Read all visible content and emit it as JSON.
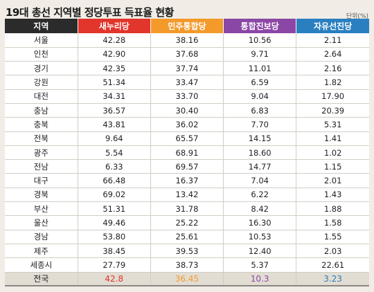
{
  "title": "19대 총선 지역별 정당투표 득표율 현황",
  "unit": "단위(%)",
  "colors": {
    "region_header": "#2b2b2b",
    "saenuri": "#e2352b",
    "minju": "#f39a2a",
    "tonghap": "#8b47a6",
    "jayu": "#2a7fc1"
  },
  "table": {
    "headers": [
      "지역",
      "새누리당",
      "민주통합당",
      "통합진보당",
      "자유선진당"
    ],
    "rows": [
      [
        "서울",
        "42.28",
        "38.16",
        "10.56",
        "2.11"
      ],
      [
        "인천",
        "42.90",
        "37.68",
        "9.71",
        "2.64"
      ],
      [
        "경기",
        "42.35",
        "37.74",
        "11.01",
        "2.16"
      ],
      [
        "강원",
        "51.34",
        "33.47",
        "6.59",
        "1.82"
      ],
      [
        "대전",
        "34.31",
        "33.70",
        "9.04",
        "17.90"
      ],
      [
        "충남",
        "36.57",
        "30.40",
        "6.83",
        "20.39"
      ],
      [
        "충북",
        "43.81",
        "36.02",
        "7.70",
        "5.31"
      ],
      [
        "전북",
        "9.64",
        "65.57",
        "14.15",
        "1.41"
      ],
      [
        "광주",
        "5.54",
        "68.91",
        "18.60",
        "1.02"
      ],
      [
        "전남",
        "6.33",
        "69.57",
        "14.77",
        "1.15"
      ],
      [
        "대구",
        "66.48",
        "16.37",
        "7.04",
        "2.01"
      ],
      [
        "경북",
        "69.02",
        "13.42",
        "6.22",
        "1.43"
      ],
      [
        "부산",
        "51.31",
        "31.78",
        "8.42",
        "1.88"
      ],
      [
        "울산",
        "49.46",
        "25.22",
        "16.30",
        "1.58"
      ],
      [
        "경남",
        "53.80",
        "25.61",
        "10.53",
        "1.55"
      ],
      [
        "제주",
        "38.45",
        "39.53",
        "12.40",
        "2.03"
      ],
      [
        "세종시",
        "27.79",
        "38.73",
        "5.37",
        "22.61"
      ]
    ],
    "total": [
      "전국",
      "42.8",
      "36.45",
      "10.3",
      "3.23"
    ]
  }
}
